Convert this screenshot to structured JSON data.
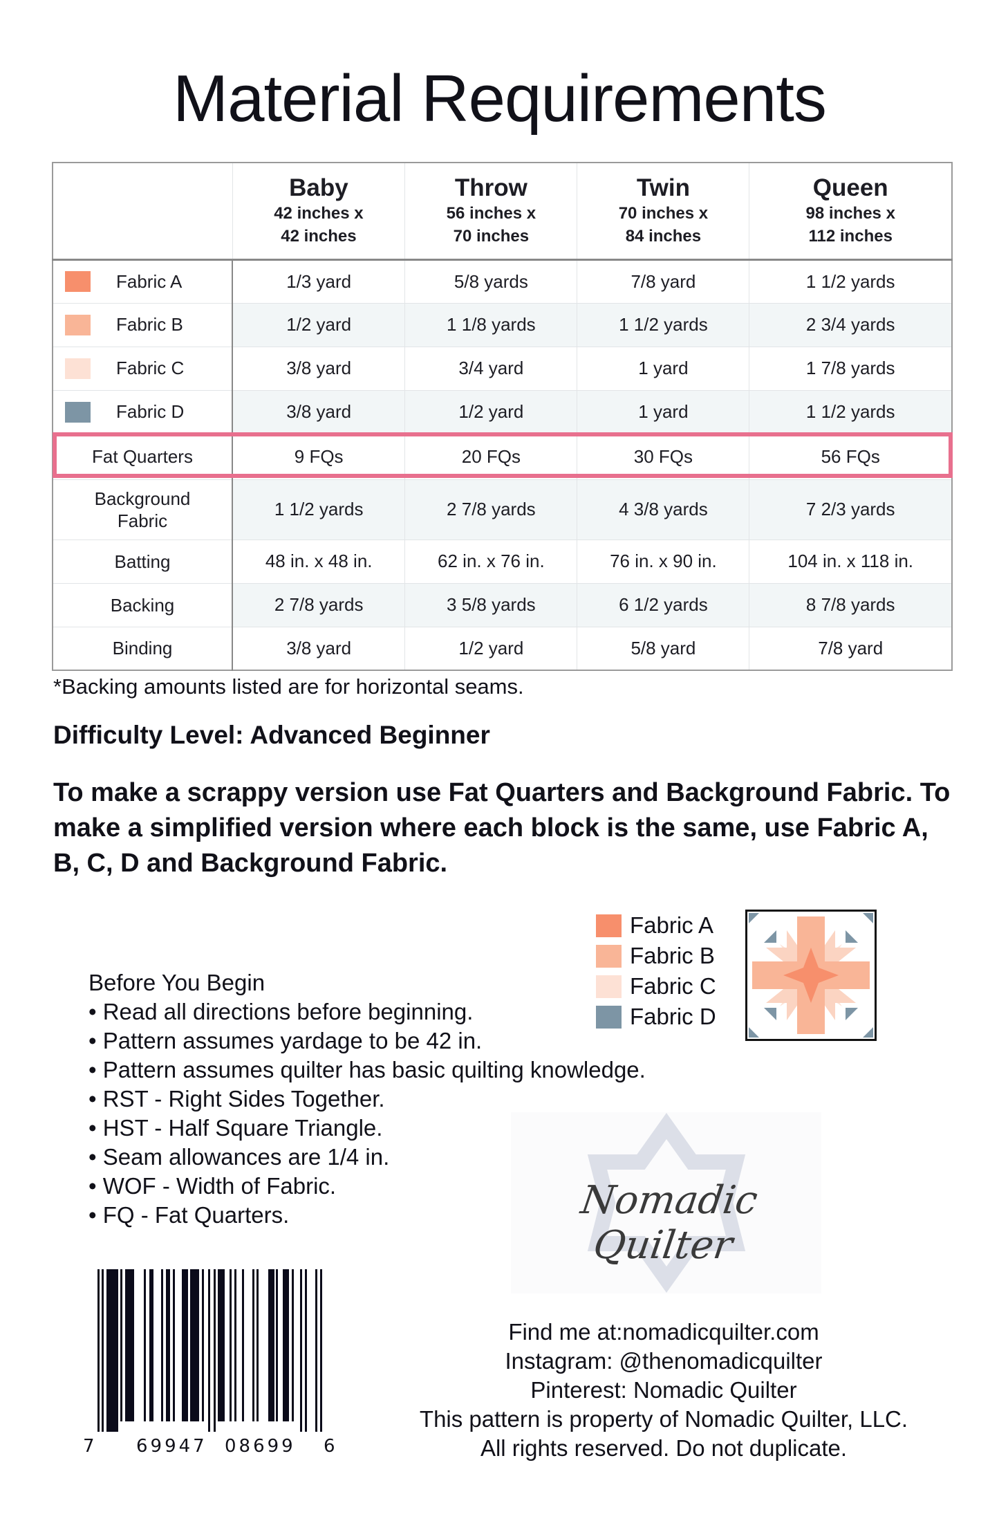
{
  "title": "Material Requirements",
  "table": {
    "columns": [
      {
        "size": "Baby",
        "dim1": "42 inches x",
        "dim2": "42 inches"
      },
      {
        "size": "Throw",
        "dim1": "56 inches x",
        "dim2": "70 inches"
      },
      {
        "size": "Twin",
        "dim1": "70 inches x",
        "dim2": "84 inches"
      },
      {
        "size": "Queen",
        "dim1": "98 inches x",
        "dim2": "112 inches"
      }
    ],
    "rows": [
      {
        "label": "Fabric A",
        "swatch": "#f78f6c",
        "values": [
          "1/3 yard",
          "5/8 yards",
          "7/8 yard",
          "1 1/2 yards"
        ]
      },
      {
        "label": "Fabric B",
        "swatch": "#f9b597",
        "values": [
          "1/2 yard",
          "1 1/8 yards",
          "1 1/2 yards",
          "2 3/4 yards"
        ]
      },
      {
        "label": "Fabric C",
        "swatch": "#fde1d5",
        "values": [
          "3/8 yard",
          "3/4 yard",
          "1 yard",
          "1 7/8 yards"
        ]
      },
      {
        "label": "Fabric D",
        "swatch": "#7d95a5",
        "values": [
          "3/8 yard",
          "1/2 yard",
          "1 yard",
          "1 1/2 yards"
        ]
      },
      {
        "label": "Fat Quarters",
        "values": [
          "9 FQs",
          "20 FQs",
          "30 FQs",
          "56 FQs"
        ]
      },
      {
        "label": "Background Fabric",
        "values": [
          "1 1/2 yards",
          "2 7/8 yards",
          "4 3/8 yards",
          "7 2/3 yards"
        ]
      },
      {
        "label": "Batting",
        "values": [
          "48 in. x 48 in.",
          "62 in. x 76 in.",
          "76 in. x 90 in.",
          "104 in. x 118 in."
        ]
      },
      {
        "label": "Backing",
        "values": [
          "2 7/8 yards",
          "3 5/8 yards",
          "6 1/2 yards",
          "8 7/8 yards"
        ]
      },
      {
        "label": "Binding",
        "values": [
          "3/8 yard",
          "1/2 yard",
          "5/8 yard",
          "7/8 yard"
        ]
      }
    ],
    "highlight_color": "#e8708e"
  },
  "footnote": "*Backing amounts listed are for horizontal seams.",
  "difficulty": "Difficulty Level: Advanced Beginner",
  "instructions": "To make a scrappy version use Fat Quarters and Background Fabric. To make a simplified version where each block is the same, use Fabric A, B, C, D and Background Fabric.",
  "legend": [
    {
      "label": "Fabric A",
      "color": "#f78f6c"
    },
    {
      "label": "Fabric B",
      "color": "#f9b597"
    },
    {
      "label": "Fabric C",
      "color": "#fde1d5"
    },
    {
      "label": "Fabric D",
      "color": "#7d95a5"
    }
  ],
  "before": {
    "heading": "Before You Begin",
    "items": [
      "• Read all directions before beginning.",
      "• Pattern assumes yardage to be 42 in.",
      "• Pattern assumes quilter has basic quilting knowledge.",
      "• RST - Right Sides Together.",
      "• HST - Half Square Triangle.",
      "• Seam allowances are 1/4 in.",
      "• WOF - Width of Fabric.",
      "• FQ - Fat Quarters."
    ]
  },
  "logo": {
    "text": "Nomadic Quilter"
  },
  "barcode": {
    "first": "7",
    "left": "69947",
    "right": "08699",
    "last": "6"
  },
  "contact": [
    "Find me at:nomadicquilter.com",
    "Instagram: @thenomadicquilter",
    "Pinterest: Nomadic Quilter",
    "This pattern is property of Nomadic Quilter, LLC.",
    "All rights reserved. Do not duplicate."
  ]
}
